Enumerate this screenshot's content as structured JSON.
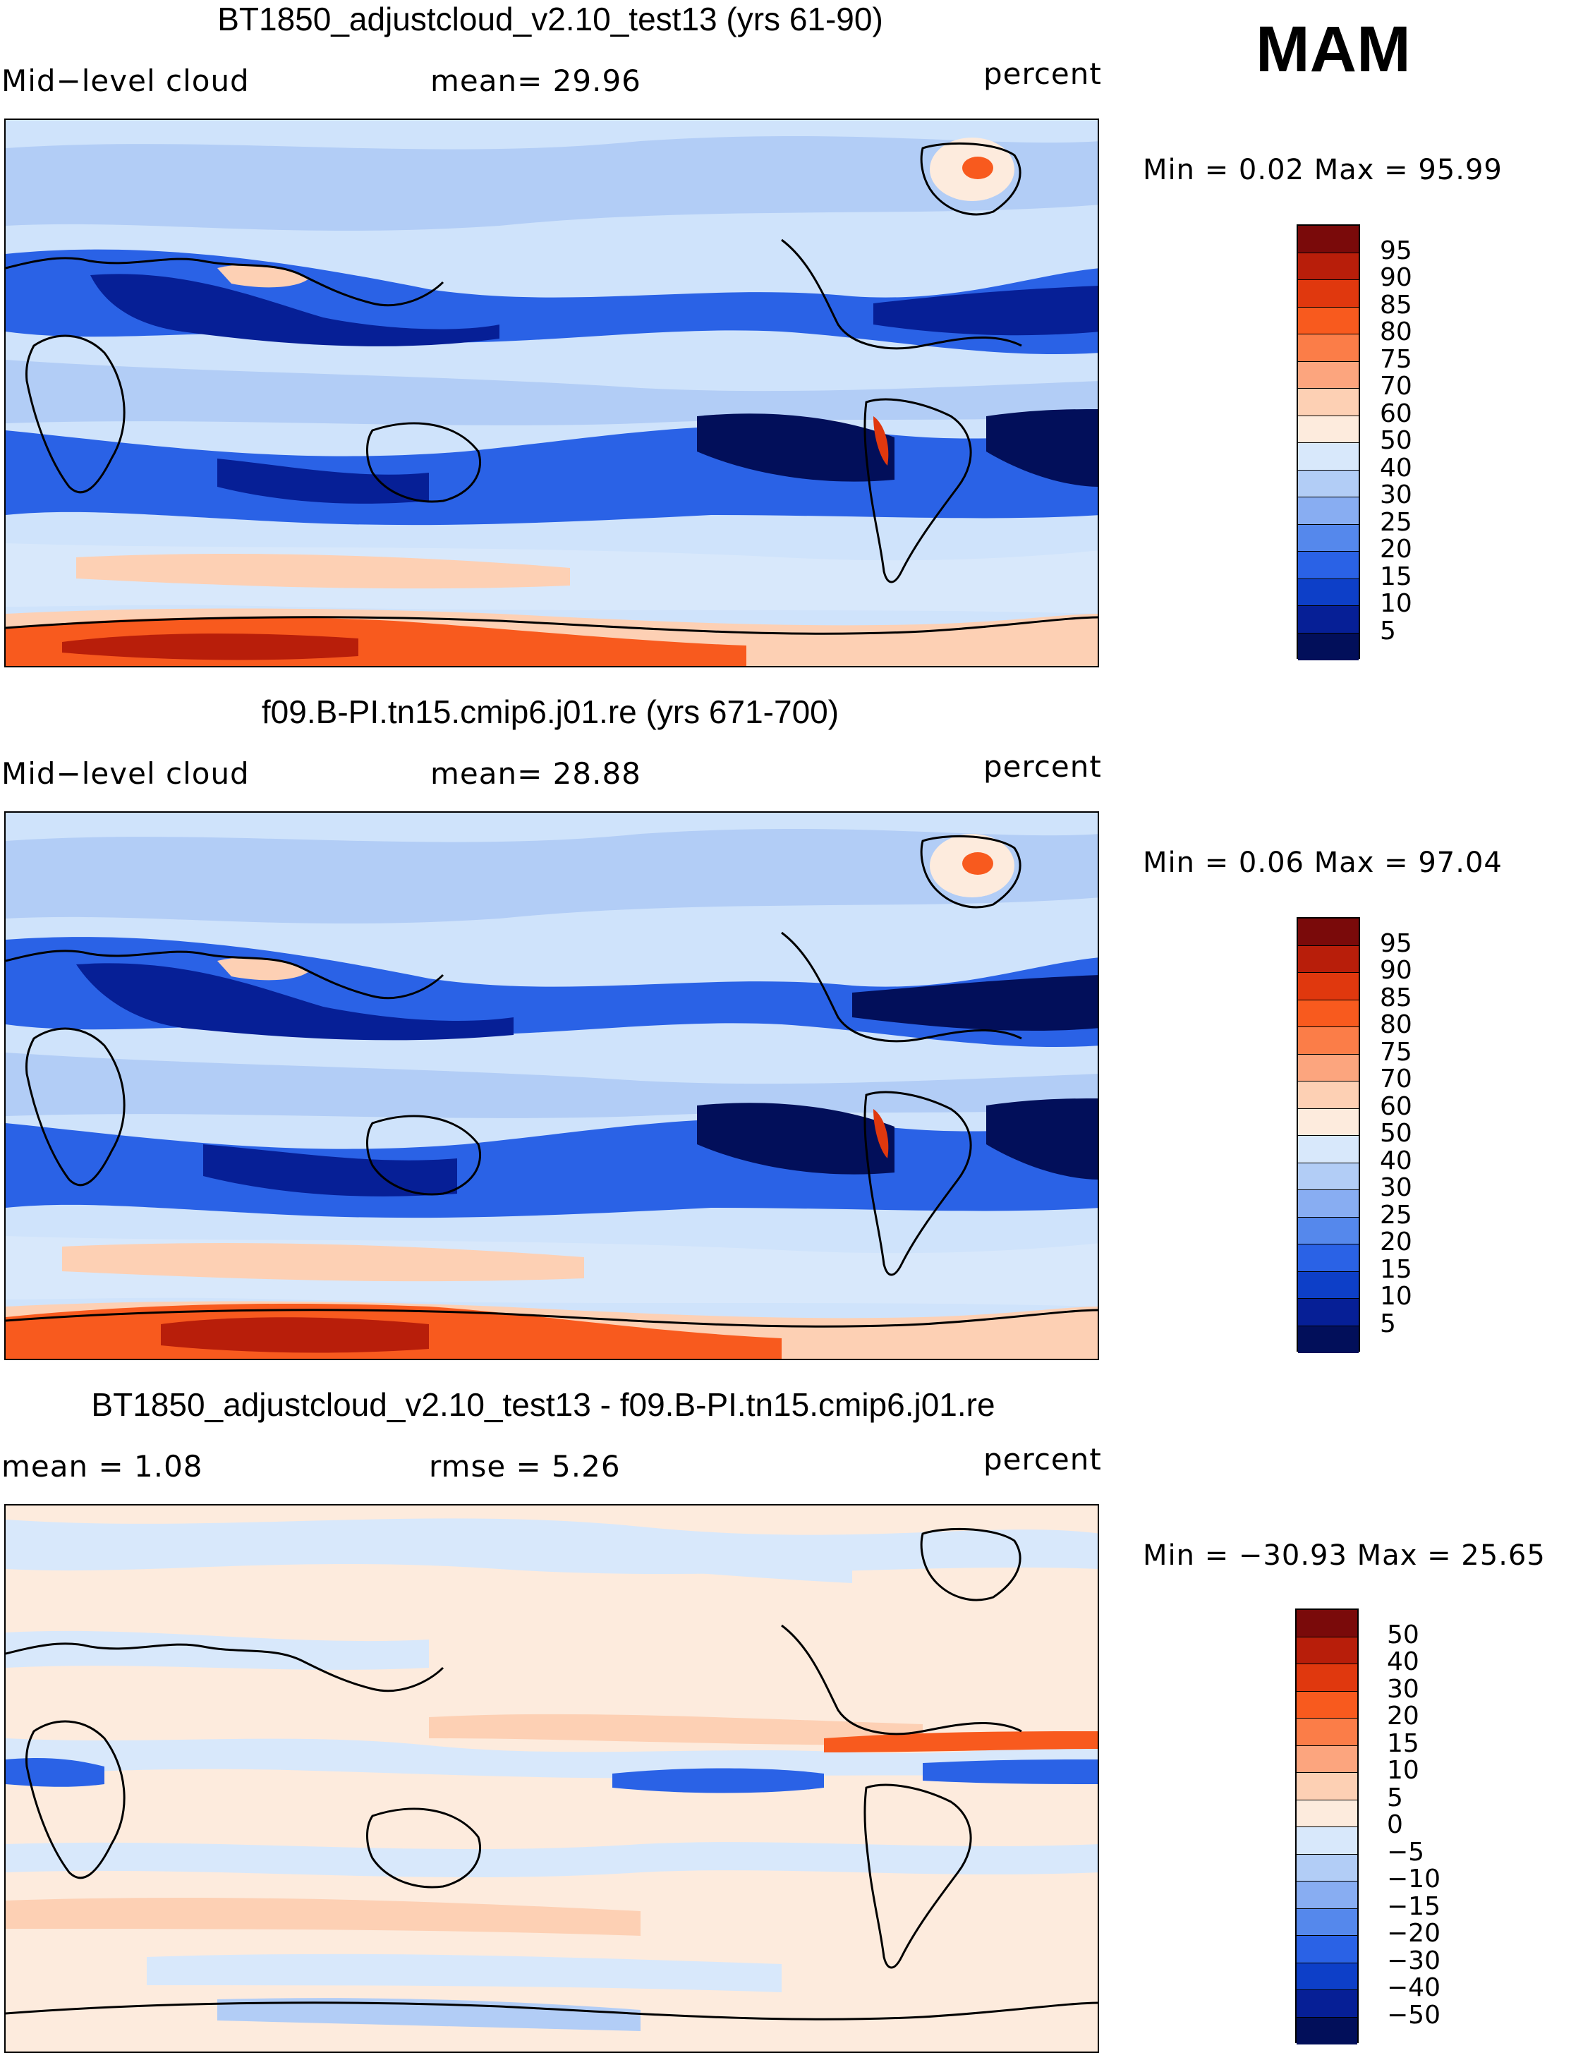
{
  "season": "MAM",
  "panels": [
    {
      "title": "BT1850_adjustcloud_v2.10_test13 (yrs 61-90)",
      "left_label": "Mid−level cloud",
      "center_label": "mean=   29.96",
      "right_label": "percent",
      "minmax": "Min =     0.02  Max =    95.99",
      "colorbar_labels": [
        "95",
        "90",
        "85",
        "80",
        "75",
        "70",
        "60",
        "50",
        "40",
        "30",
        "25",
        "20",
        "15",
        "10",
        "5"
      ],
      "colorbar_colors": [
        "#7a0a0a",
        "#b81e0a",
        "#e0380e",
        "#f85a1e",
        "#fb7d48",
        "#fca57e",
        "#fdd0b4",
        "#fdebdd",
        "#d8e8fb",
        "#b2cdf6",
        "#88adf2",
        "#5588ec",
        "#2a62e6",
        "#0d3fc8",
        "#061f96",
        "#020f5a"
      ],
      "mean_value": 29.96
    },
    {
      "title": "f09.B-PI.tn15.cmip6.j01.re (yrs 671-700)",
      "left_label": "Mid−level cloud",
      "center_label": "mean=   28.88",
      "right_label": "percent",
      "minmax": "Min =     0.06  Max =    97.04",
      "colorbar_labels": [
        "95",
        "90",
        "85",
        "80",
        "75",
        "70",
        "60",
        "50",
        "40",
        "30",
        "25",
        "20",
        "15",
        "10",
        "5"
      ],
      "colorbar_colors": [
        "#7a0a0a",
        "#b81e0a",
        "#e0380e",
        "#f85a1e",
        "#fb7d48",
        "#fca57e",
        "#fdd0b4",
        "#fdebdd",
        "#d8e8fb",
        "#b2cdf6",
        "#88adf2",
        "#5588ec",
        "#2a62e6",
        "#0d3fc8",
        "#061f96",
        "#020f5a"
      ],
      "mean_value": 28.88
    },
    {
      "title": "BT1850_adjustcloud_v2.10_test13 - f09.B-PI.tn15.cmip6.j01.re",
      "left_label": "mean =     1.08",
      "center_label": "rmse =     5.26",
      "right_label": "percent",
      "minmax": "Min = −30.93  Max =    25.65",
      "colorbar_labels": [
        "50",
        "40",
        "30",
        "20",
        "15",
        "10",
        "5",
        "0",
        "−5",
        "−10",
        "−15",
        "−20",
        "−30",
        "−40",
        "−50"
      ],
      "colorbar_colors": [
        "#7a0a0a",
        "#b81e0a",
        "#e0380e",
        "#f85a1e",
        "#fb7d48",
        "#fca57e",
        "#fdd0b4",
        "#fdebdd",
        "#d8e8fb",
        "#b2cdf6",
        "#88adf2",
        "#5588ec",
        "#2a62e6",
        "#0d3fc8",
        "#061f96",
        "#020f5a"
      ],
      "mean_value": 1.08,
      "rmse_value": 5.26
    }
  ]
}
